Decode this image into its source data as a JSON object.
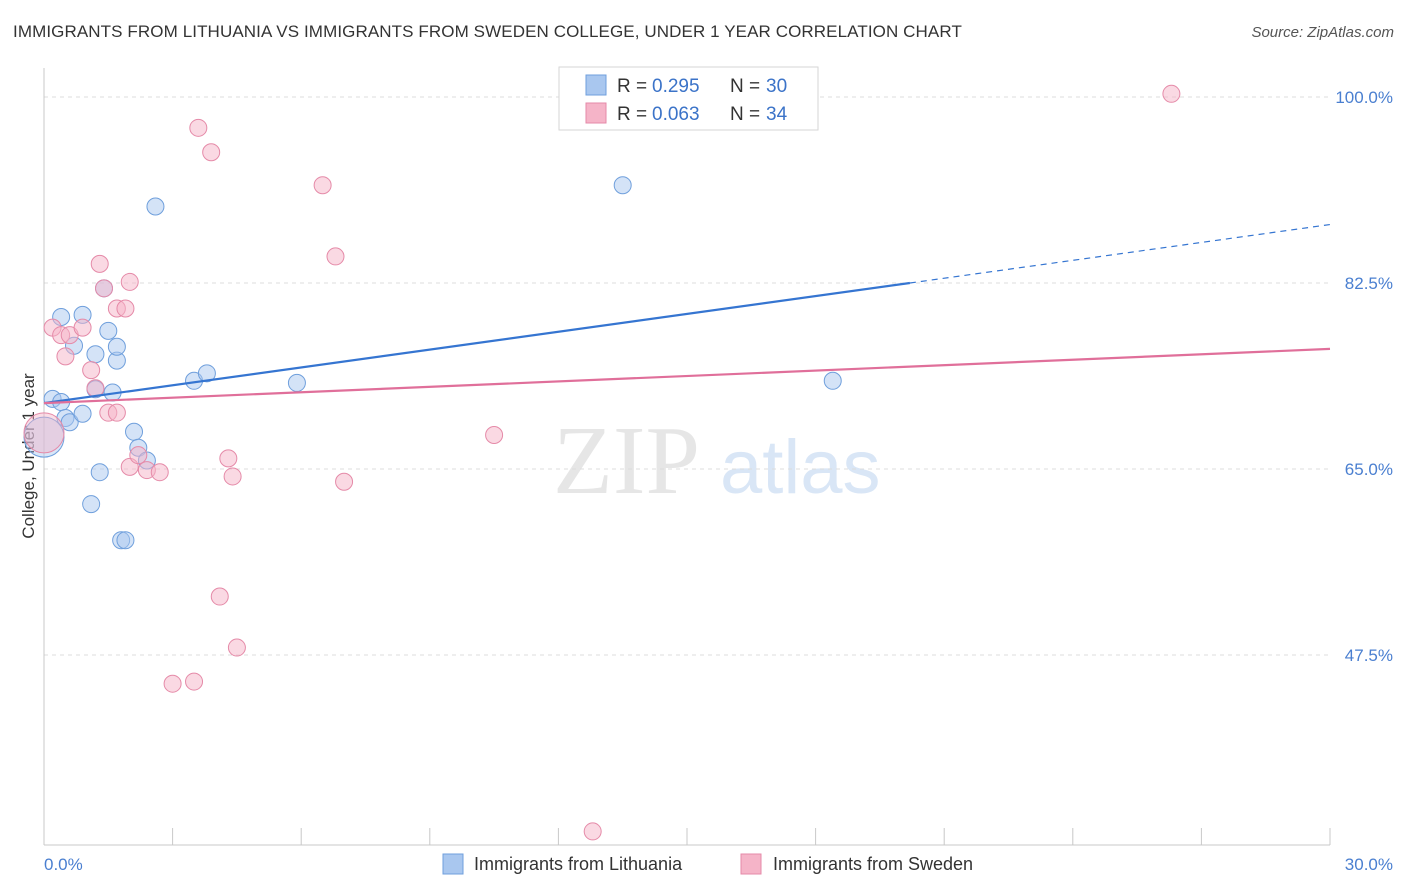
{
  "title": "IMMIGRANTS FROM LITHUANIA VS IMMIGRANTS FROM SWEDEN COLLEGE, UNDER 1 YEAR CORRELATION CHART",
  "source": "Source: ZipAtlas.com",
  "watermark": {
    "zip": "ZIP",
    "atlas": "atlas"
  },
  "chart_data": {
    "type": "scatter",
    "xlabel": "",
    "ylabel": "College, Under 1 year",
    "xlim": [
      0,
      30
    ],
    "ylim": [
      30,
      102
    ],
    "x_tick_labels": [
      {
        "value": 0,
        "label": "0.0%"
      },
      {
        "value": 30,
        "label": "30.0%"
      }
    ],
    "x_minor_ticks": [
      0,
      3,
      6,
      9,
      12,
      15,
      18,
      21,
      24,
      27,
      30
    ],
    "y_tick_labels": [
      {
        "value": 100,
        "label": "100.0%"
      },
      {
        "value": 82.5,
        "label": "82.5%"
      },
      {
        "value": 65,
        "label": "65.0%"
      },
      {
        "value": 47.5,
        "label": "47.5%"
      }
    ],
    "gridlines": [
      100,
      82.5,
      65,
      47.5
    ],
    "legend": {
      "rows": [
        {
          "r_label": "R = ",
          "r_value": "0.295",
          "n_label": "N = ",
          "n_value": "30",
          "color": "#a9c7ef"
        },
        {
          "r_label": "R = ",
          "r_value": "0.063",
          "n_label": "N = ",
          "n_value": "34",
          "color": "#f5b4c8"
        }
      ]
    },
    "series": [
      {
        "name": "Immigrants from Lithuania",
        "fill": "#a9c7ef",
        "stroke": "#6f9fdc",
        "trend_color": "#3575d1",
        "trend": {
          "x0": 0,
          "y0": 71.2,
          "x1": 20.2,
          "y1": 82.5,
          "dash_to_x": 30,
          "dash_to_y": 88.0
        },
        "points": [
          [
            0.0,
            68.0,
            "big"
          ],
          [
            0.2,
            71.6
          ],
          [
            0.4,
            71.3
          ],
          [
            0.5,
            69.8
          ],
          [
            0.6,
            69.4
          ],
          [
            0.4,
            79.3
          ],
          [
            0.7,
            76.6
          ],
          [
            0.9,
            70.2
          ],
          [
            0.9,
            79.5
          ],
          [
            1.2,
            72.5
          ],
          [
            1.2,
            75.8
          ],
          [
            1.3,
            64.7
          ],
          [
            1.1,
            61.7
          ],
          [
            1.4,
            82.0
          ],
          [
            1.5,
            78.0
          ],
          [
            1.6,
            72.2
          ],
          [
            1.7,
            75.2
          ],
          [
            1.7,
            76.5
          ],
          [
            1.8,
            58.3
          ],
          [
            1.9,
            58.3
          ],
          [
            2.1,
            68.5
          ],
          [
            2.2,
            67.0
          ],
          [
            2.4,
            65.8
          ],
          [
            2.6,
            89.7
          ],
          [
            3.5,
            73.3
          ],
          [
            3.8,
            74.0
          ],
          [
            5.9,
            73.1
          ],
          [
            13.5,
            91.7
          ],
          [
            18.4,
            73.3
          ]
        ]
      },
      {
        "name": "Immigrants from Sweden",
        "fill": "#f5b4c8",
        "stroke": "#e58aa8",
        "trend_color": "#e06f9a",
        "trend": {
          "x0": 0,
          "y0": 71.2,
          "x1": 30,
          "y1": 76.3
        },
        "points": [
          [
            0.0,
            68.4,
            "big"
          ],
          [
            0.2,
            78.3
          ],
          [
            0.4,
            77.6
          ],
          [
            0.5,
            75.6
          ],
          [
            0.6,
            77.6
          ],
          [
            0.9,
            78.3
          ],
          [
            1.1,
            74.3
          ],
          [
            1.2,
            72.6
          ],
          [
            1.3,
            84.3
          ],
          [
            1.4,
            82.0
          ],
          [
            1.5,
            70.3
          ],
          [
            1.7,
            70.3
          ],
          [
            1.7,
            80.1
          ],
          [
            1.9,
            80.1
          ],
          [
            2.0,
            82.6
          ],
          [
            2.0,
            65.2
          ],
          [
            2.2,
            66.3
          ],
          [
            2.4,
            64.9
          ],
          [
            2.7,
            64.7
          ],
          [
            3.0,
            44.8
          ],
          [
            3.6,
            97.1
          ],
          [
            3.9,
            94.8
          ],
          [
            3.5,
            45.0
          ],
          [
            4.1,
            53.0
          ],
          [
            4.3,
            66.0
          ],
          [
            4.4,
            64.3
          ],
          [
            4.5,
            48.2
          ],
          [
            6.5,
            91.7
          ],
          [
            6.8,
            85.0
          ],
          [
            7.0,
            63.8
          ],
          [
            10.5,
            68.2
          ],
          [
            12.8,
            30.9
          ],
          [
            26.3,
            100.3
          ]
        ]
      }
    ]
  },
  "bottom_legend": [
    {
      "label": "Immigrants from Lithuania",
      "color": "#a9c7ef"
    },
    {
      "label": "Immigrants from Sweden",
      "color": "#f5b4c8"
    }
  ]
}
